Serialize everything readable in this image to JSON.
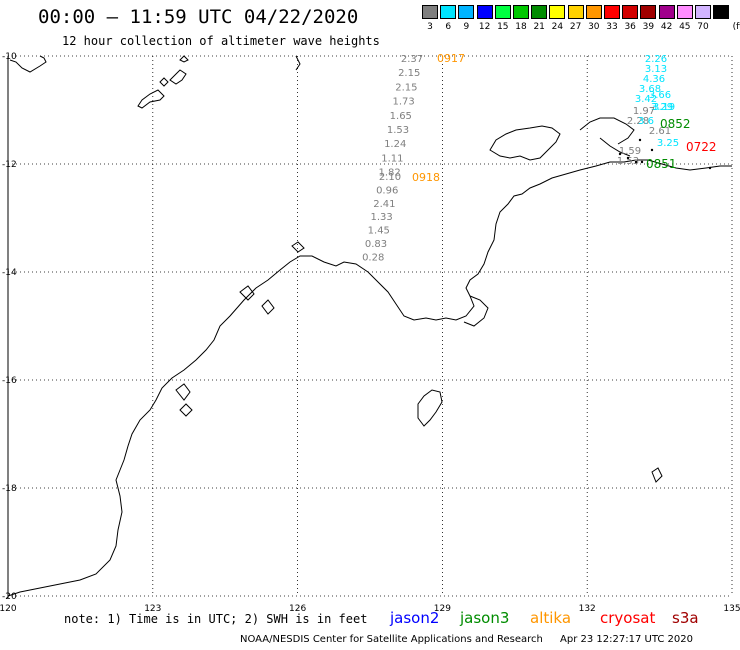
{
  "title": "00:00 – 11:59 UTC 04/22/2020",
  "subtitle": "12 hour collection of altimeter wave heights",
  "colorbar": {
    "unit": "(ft)",
    "entries": [
      {
        "label": "3",
        "color": "#7f7f7f"
      },
      {
        "label": "6",
        "color": "#00e5ff"
      },
      {
        "label": "9",
        "color": "#00b4ff"
      },
      {
        "label": "12",
        "color": "#0000ff"
      },
      {
        "label": "15",
        "color": "#00ff40"
      },
      {
        "label": "18",
        "color": "#00c800"
      },
      {
        "label": "21",
        "color": "#008c00"
      },
      {
        "label": "24",
        "color": "#ffff00"
      },
      {
        "label": "27",
        "color": "#ffd200"
      },
      {
        "label": "30",
        "color": "#ff9600"
      },
      {
        "label": "33",
        "color": "#ff0000"
      },
      {
        "label": "36",
        "color": "#d20000"
      },
      {
        "label": "39",
        "color": "#a00000"
      },
      {
        "label": "42",
        "color": "#a0008c"
      },
      {
        "label": "45",
        "color": "#ff8cff"
      },
      {
        "label": "70",
        "color": "#d2b4ff"
      },
      {
        "label": "",
        "color": "#000000"
      }
    ]
  },
  "map": {
    "lon_range": [
      120,
      135
    ],
    "lat_range": [
      -20,
      -10
    ],
    "lon_ticks": [
      "120",
      "123",
      "126",
      "129",
      "132",
      "135"
    ],
    "lat_ticks": [
      "-10",
      "-12",
      "-14",
      "-16",
      "-18",
      "-20"
    ],
    "grid": "dotted"
  },
  "tracks": [
    {
      "time": "0917",
      "color": "#ff9600",
      "values": [
        "2.37",
        "2.15",
        "2.15",
        "1.73",
        "1.65",
        "1.53",
        "1.24",
        "1.11",
        "1.82"
      ]
    },
    {
      "time": "0918",
      "color": "#ff9600",
      "values": [
        "2.10",
        "0.96",
        "2.41",
        "1.33",
        "1.45",
        "0.83",
        "0.28"
      ]
    },
    {
      "time": "0852",
      "color": "#008c00",
      "values": [
        "2.26",
        "3.13",
        "4.36",
        "3.68",
        "3.66",
        "3.42",
        "3.29",
        "3.19",
        "1.97",
        "2.28",
        "3.6",
        "2.61",
        "3.25",
        "1.59",
        "1.53"
      ]
    },
    {
      "time": "0851",
      "color": "#008c00",
      "values": []
    },
    {
      "time": "0722",
      "color": "#ff0000",
      "values": []
    }
  ],
  "note": "note: 1) Time is in UTC; 2) SWH is in feet",
  "legend": [
    {
      "name": "jason2",
      "color": "#0000ff"
    },
    {
      "name": "jason3",
      "color": "#008c00"
    },
    {
      "name": "altika",
      "color": "#ff9600"
    },
    {
      "name": "cryosat",
      "color": "#ff0000"
    },
    {
      "name": "s3a",
      "color": "#a00000"
    }
  ],
  "footer": {
    "credit": "NOAA/NESDIS Center for Satellite Applications and Research",
    "timestamp": "Apr 23 12:27:17 UTC 2020"
  }
}
